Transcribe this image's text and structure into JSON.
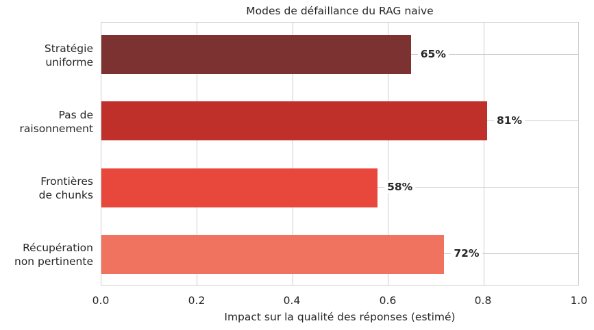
{
  "chart_data": {
    "type": "bar",
    "orientation": "horizontal",
    "title": "Modes de défaillance du RAG naive",
    "xlabel": "Impact sur la qualité des réponses (estimé)",
    "ylabel": "",
    "xlim": [
      0,
      1.0
    ],
    "grid": true,
    "categories": [
      "Stratégie\nuniforme",
      "Pas de\nraisonnement",
      "Frontières\nde chunks",
      "Récupération\nnon pertinente"
    ],
    "values": [
      0.65,
      0.81,
      0.58,
      0.72
    ],
    "value_labels": [
      "65%",
      "81%",
      "58%",
      "72%"
    ],
    "colors": [
      "#7B3230",
      "#C0302A",
      "#E8473B",
      "#F07360"
    ],
    "xticks": [
      "0.0",
      "0.2",
      "0.4",
      "0.6",
      "0.8",
      "1.0"
    ],
    "legend": null
  }
}
